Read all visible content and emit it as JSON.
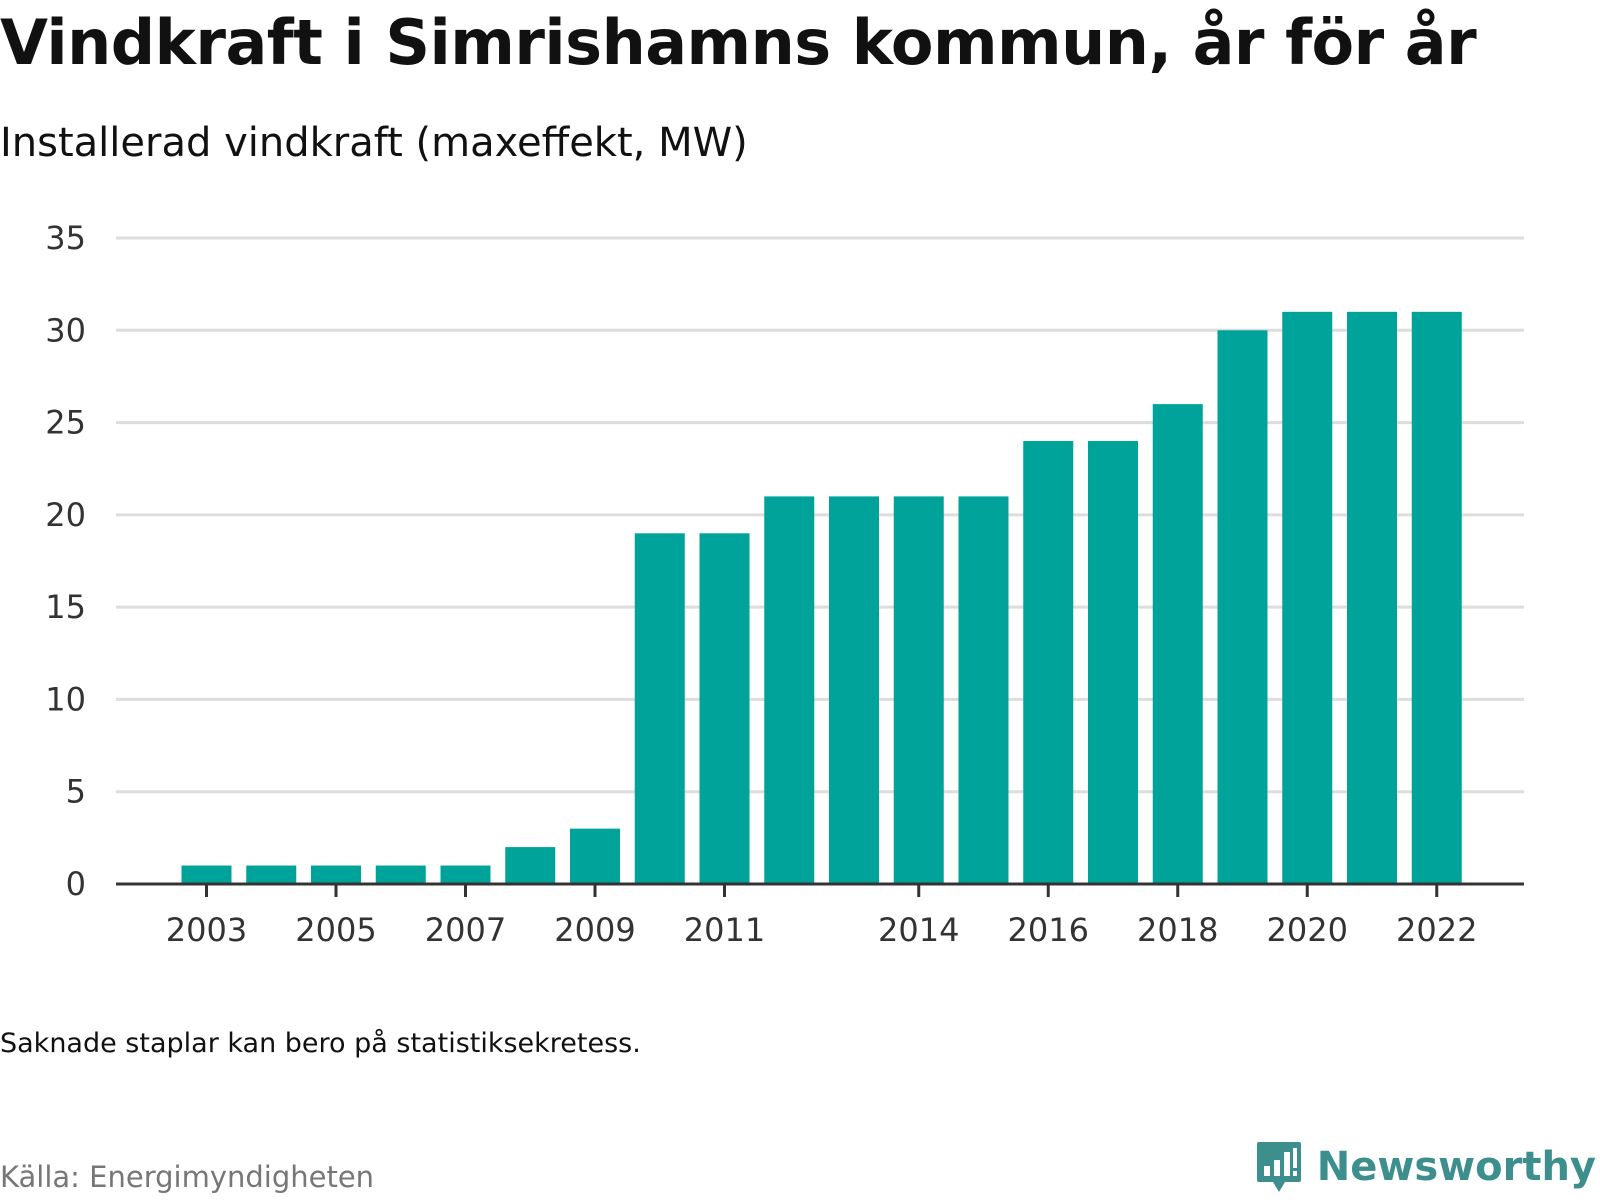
{
  "header": {
    "title": "Vindkraft i Simrishamns kommun, år för år",
    "subtitle": "Installerad vindkraft (maxeffekt, MW)"
  },
  "footer": {
    "note": "Saknade staplar kan bero på statistiksekretess.",
    "source": "Källa: Energimyndigheten",
    "brand": "Newsworthy",
    "brand_icon": "bar-chart-speech-bubble-icon"
  },
  "colors": {
    "bar": "#00a39a",
    "grid": "#dddddd",
    "axis": "#333333",
    "brand": "#3d8f8d"
  },
  "chart_data": {
    "type": "bar",
    "title": "Vindkraft i Simrishamns kommun, år för år",
    "subtitle": "Installerad vindkraft (maxeffekt, MW)",
    "categories": [
      "2003",
      "2004",
      "2005",
      "2006",
      "2007",
      "2008",
      "2009",
      "2010",
      "2011",
      "2012",
      "2013",
      "2014",
      "2015",
      "2016",
      "2017",
      "2018",
      "2019",
      "2020",
      "2021",
      "2022"
    ],
    "values": [
      1,
      1,
      1,
      1,
      1,
      2,
      3,
      19,
      19,
      21,
      21,
      21,
      21,
      24,
      24,
      26,
      30,
      31,
      31,
      31
    ],
    "x_tick_labels": [
      "2003",
      "2005",
      "2007",
      "2009",
      "2011",
      "2014",
      "2016",
      "2018",
      "2020",
      "2022"
    ],
    "y_ticks": [
      0,
      5,
      10,
      15,
      20,
      25,
      30,
      35
    ],
    "ylim": [
      0,
      35
    ],
    "xlabel": "",
    "ylabel": "",
    "grid": true,
    "legend": "none"
  }
}
